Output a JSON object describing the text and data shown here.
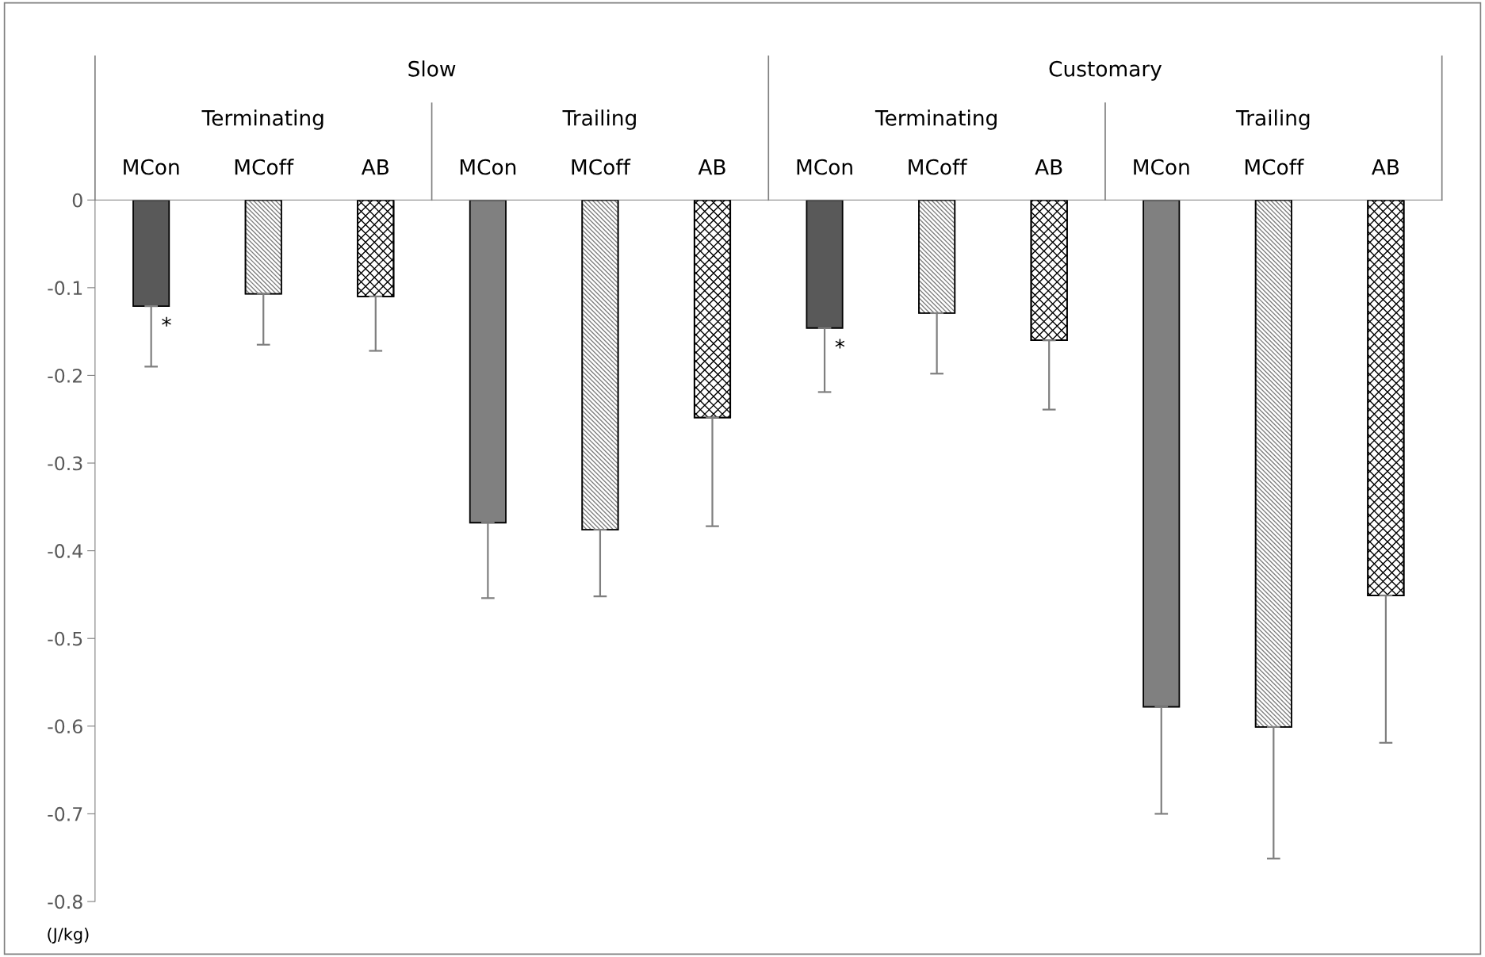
{
  "chart_data": {
    "type": "bar",
    "categories": [
      "MCon",
      "MCoff",
      "AB",
      "MCon",
      "MCoff",
      "AB",
      "MCon",
      "MCoff",
      "AB",
      "MCon",
      "MCoff",
      "AB"
    ],
    "values": [
      -0.121,
      -0.107,
      -0.11,
      -0.368,
      -0.376,
      -0.248,
      -0.146,
      -0.129,
      -0.16,
      -0.578,
      -0.601,
      -0.451
    ],
    "colors": [
      "#595959",
      "#7f7f7f",
      "#000000",
      "#808080",
      "#7f7f7f",
      "#000000",
      "#595959",
      "#7f7f7f",
      "#000000",
      "#808080",
      "#7f7f7f",
      "#000000"
    ],
    "errors": [
      [
        -0.19,
        -0.121
      ],
      [
        -0.165,
        -0.107
      ],
      [
        -0.172,
        -0.11
      ],
      [
        -0.454,
        -0.368
      ],
      [
        -0.452,
        -0.376
      ],
      [
        -0.372,
        -0.248
      ],
      [
        -0.219,
        -0.146
      ],
      [
        -0.198,
        -0.129
      ],
      [
        -0.239,
        -0.16
      ],
      [
        -0.7,
        -0.578
      ],
      [
        -0.751,
        -0.601
      ],
      [
        -0.619,
        -0.451
      ]
    ],
    "ylabel": "(J/kg)",
    "ylim": [
      -0.8,
      0
    ],
    "yticks": [
      {
        "value": 0,
        "label": "0"
      },
      {
        "value": -0.1,
        "label": "-0.1"
      },
      {
        "value": -0.2,
        "label": "-0.2"
      },
      {
        "value": -0.3,
        "label": "-0.3"
      },
      {
        "value": -0.4,
        "label": "-0.4"
      },
      {
        "value": -0.5,
        "label": "-0.5"
      },
      {
        "value": -0.6,
        "label": "-0.6"
      },
      {
        "value": -0.7,
        "label": "-0.7"
      },
      {
        "value": -0.8,
        "label": "-0.8"
      }
    ],
    "annotations": [
      "Slow",
      "Customary",
      "Terminating",
      "Trailing",
      "Terminating",
      "Trailing",
      "*",
      "*"
    ],
    "grid": false,
    "legend": false
  }
}
